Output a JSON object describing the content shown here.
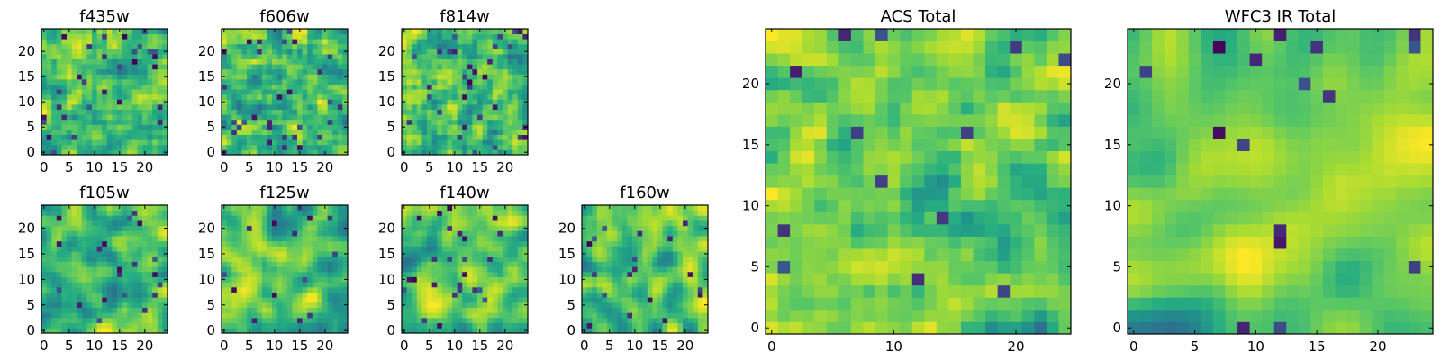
{
  "chart_data": [
    {
      "type": "heatmap",
      "title": "f435w",
      "size": 25,
      "xticks": [
        0,
        5,
        10,
        15,
        20
      ],
      "yticks": [
        0,
        5,
        10,
        15,
        20
      ],
      "xlim": [
        -0.5,
        24.5
      ],
      "ylim": [
        -0.5,
        24.5
      ],
      "colormap": "viridis",
      "seed": 11,
      "sigma": 0.3,
      "dark_density": 0.05
    },
    {
      "type": "heatmap",
      "title": "f606w",
      "size": 25,
      "xticks": [
        0,
        5,
        10,
        15,
        20
      ],
      "yticks": [
        0,
        5,
        10,
        15,
        20
      ],
      "xlim": [
        -0.5,
        24.5
      ],
      "ylim": [
        -0.5,
        24.5
      ],
      "colormap": "viridis",
      "seed": 23,
      "sigma": 0.3,
      "dark_density": 0.04
    },
    {
      "type": "heatmap",
      "title": "f814w",
      "size": 25,
      "xticks": [
        0,
        5,
        10,
        15,
        20
      ],
      "yticks": [
        0,
        5,
        10,
        15,
        20
      ],
      "xlim": [
        -0.5,
        24.5
      ],
      "ylim": [
        -0.5,
        24.5
      ],
      "colormap": "viridis",
      "seed": 37,
      "sigma": 0.3,
      "dark_density": 0.05
    },
    {
      "type": "heatmap",
      "title": "f105w",
      "size": 25,
      "xticks": [
        0,
        5,
        10,
        15,
        20
      ],
      "yticks": [
        0,
        5,
        10,
        15,
        20
      ],
      "xlim": [
        -0.5,
        24.5
      ],
      "ylim": [
        -0.5,
        24.5
      ],
      "colormap": "viridis",
      "seed": 41,
      "sigma": 1.2,
      "dark_density": 0.03
    },
    {
      "type": "heatmap",
      "title": "f125w",
      "size": 25,
      "xticks": [
        0,
        5,
        10,
        15,
        20
      ],
      "yticks": [
        0,
        5,
        10,
        15,
        20
      ],
      "xlim": [
        -0.5,
        24.5
      ],
      "ylim": [
        -0.5,
        24.5
      ],
      "colormap": "viridis",
      "seed": 53,
      "sigma": 1.2,
      "dark_density": 0.03
    },
    {
      "type": "heatmap",
      "title": "f140w",
      "size": 25,
      "xticks": [
        0,
        5,
        10,
        15,
        20
      ],
      "yticks": [
        0,
        5,
        10,
        15,
        20
      ],
      "xlim": [
        -0.5,
        24.5
      ],
      "ylim": [
        -0.5,
        24.5
      ],
      "colormap": "viridis",
      "seed": 67,
      "sigma": 1.2,
      "dark_density": 0.03
    },
    {
      "type": "heatmap",
      "title": "f160w",
      "size": 25,
      "xticks": [
        0,
        5,
        10,
        15,
        20
      ],
      "yticks": [
        0,
        5,
        10,
        15,
        20
      ],
      "xlim": [
        -0.5,
        24.5
      ],
      "ylim": [
        -0.5,
        24.5
      ],
      "colormap": "viridis",
      "seed": 79,
      "sigma": 1.0,
      "dark_density": 0.04
    },
    {
      "type": "heatmap",
      "title": "ACS Total",
      "size": 25,
      "xticks": [
        0,
        10,
        20
      ],
      "yticks": [
        0,
        5,
        10,
        15,
        20
      ],
      "xlim": [
        -0.5,
        24.5
      ],
      "ylim": [
        -0.5,
        24.5
      ],
      "colormap": "viridis",
      "seed": 83,
      "sigma": 0.5,
      "dark_density": 0.025
    },
    {
      "type": "heatmap",
      "title": "WFC3 IR Total",
      "size": 25,
      "xticks": [
        0,
        5,
        10,
        15,
        20
      ],
      "yticks": [
        0,
        5,
        10,
        15,
        20
      ],
      "xlim": [
        -0.5,
        24.5
      ],
      "ylim": [
        -0.5,
        24.5
      ],
      "colormap": "viridis",
      "seed": 97,
      "sigma": 1.3,
      "dark_density": 0.03
    }
  ]
}
